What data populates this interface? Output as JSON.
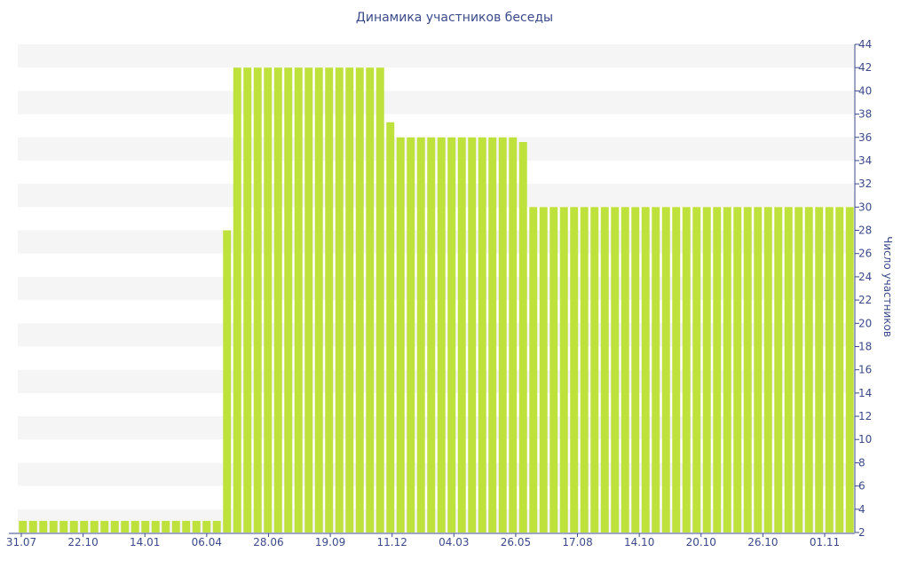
{
  "chart_data": {
    "type": "bar",
    "title": "Динамика участников беседы",
    "xlabel": "",
    "ylabel": "Число участников",
    "ylim": [
      2,
      44
    ],
    "y_ticks": [
      2,
      4,
      6,
      8,
      10,
      12,
      14,
      16,
      18,
      20,
      22,
      24,
      26,
      28,
      30,
      32,
      34,
      36,
      38,
      40,
      42,
      44
    ],
    "x_tick_labels": [
      "31.07",
      "22.10",
      "14.01",
      "06.04",
      "28.06",
      "19.09",
      "11.12",
      "04.03",
      "26.05",
      "17.08",
      "14.10",
      "20.10",
      "26.10",
      "01.11"
    ],
    "legend": "none",
    "grid": "horizontal bands",
    "bar_color": "#bfe13b",
    "values": [
      3,
      3,
      3,
      3,
      3,
      3,
      3,
      3,
      3,
      3,
      3,
      3,
      3,
      3,
      3,
      3,
      3,
      3,
      3,
      3,
      28,
      42,
      42,
      42,
      42,
      42,
      42,
      42,
      42,
      42,
      42,
      42,
      42,
      42,
      42,
      42,
      37.3,
      36,
      36,
      36,
      36,
      36,
      36,
      36,
      36,
      36,
      36,
      36,
      36,
      35.6,
      30,
      30,
      30,
      30,
      30,
      30,
      30,
      30,
      30,
      30,
      30,
      30,
      30,
      30,
      30,
      30,
      30,
      30,
      30,
      30,
      30,
      30,
      30,
      30,
      30,
      30,
      30,
      30,
      30,
      30,
      30,
      30
    ]
  }
}
